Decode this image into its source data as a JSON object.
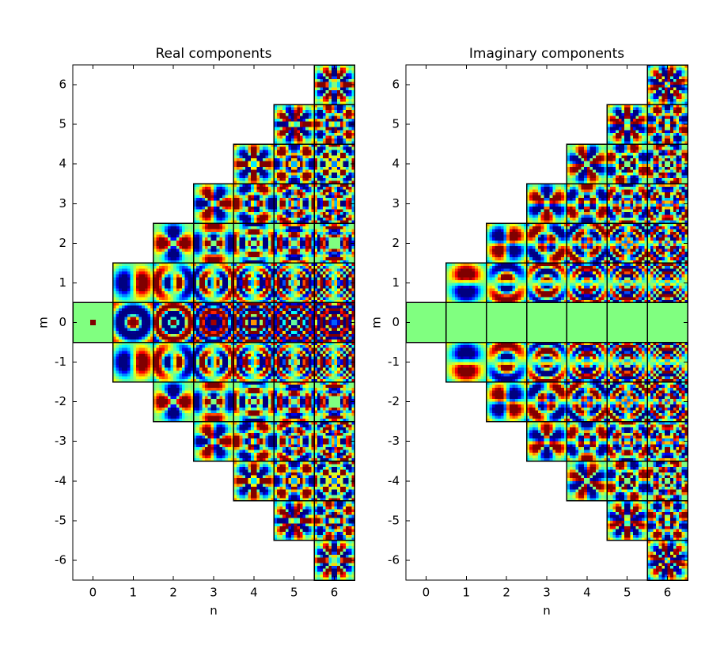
{
  "chart_data": [
    {
      "type": "heatmap",
      "title": "Real components",
      "xlabel": "n",
      "ylabel": "m",
      "xlim": [
        -0.5,
        6.5
      ],
      "ylim": [
        -6.5,
        6.5
      ],
      "xticks": [
        0,
        1,
        2,
        3,
        4,
        5,
        6
      ],
      "yticks": [
        -6,
        -5,
        -4,
        -3,
        -2,
        -1,
        0,
        1,
        2,
        3,
        4,
        5,
        6
      ]
    },
    {
      "type": "heatmap",
      "title": "Imaginary components",
      "xlabel": "n",
      "ylabel": "m",
      "xlim": [
        -0.5,
        6.5
      ],
      "ylim": [
        -6.5,
        6.5
      ],
      "xticks": [
        0,
        1,
        2,
        3,
        4,
        5,
        6
      ],
      "yticks": [
        -6,
        -5,
        -4,
        -3,
        -2,
        -1,
        0,
        1,
        2,
        3,
        4,
        5,
        6
      ]
    }
  ]
}
